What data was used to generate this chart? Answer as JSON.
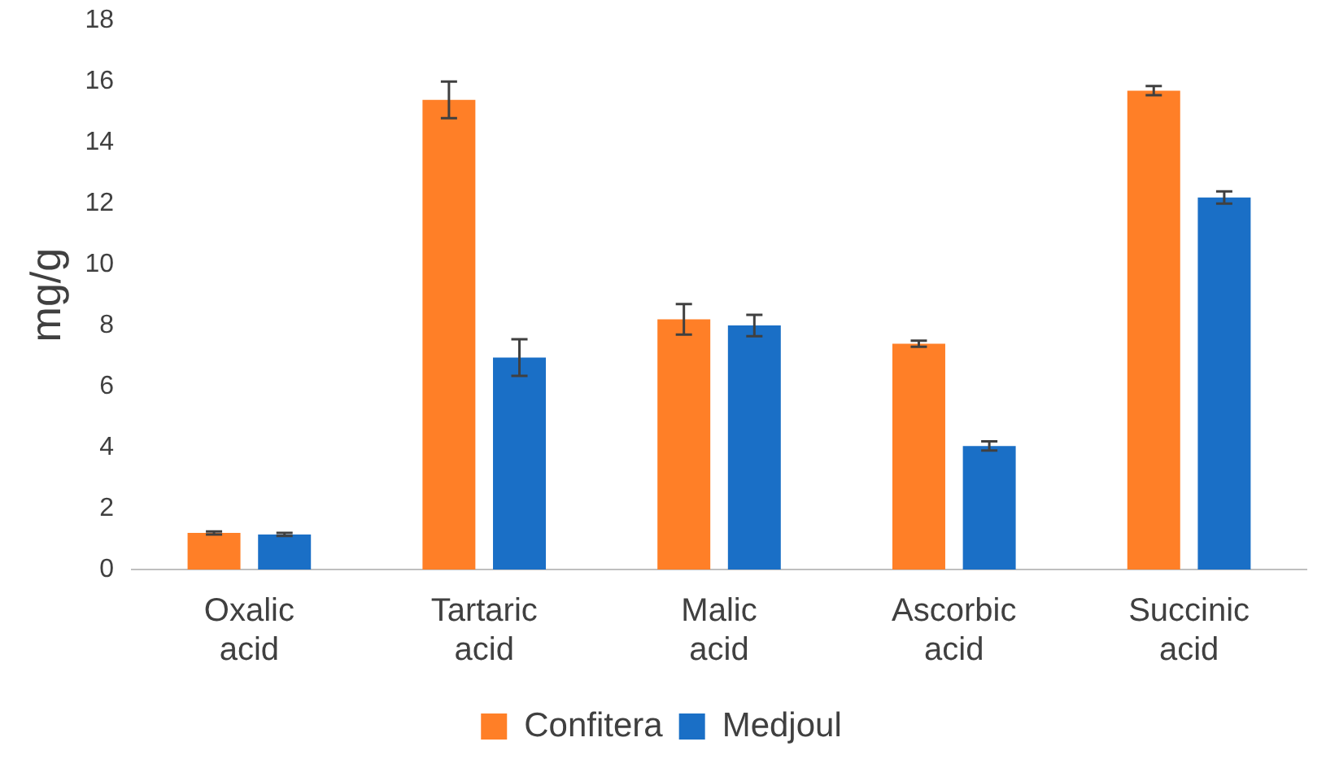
{
  "chart_data": {
    "type": "bar",
    "ylabel": "mg/g",
    "categories": [
      "Oxalic acid",
      "Tartaric acid",
      "Malic acid",
      "Ascorbic acid",
      "Succinic acid"
    ],
    "series": [
      {
        "name": "Confitera",
        "color": "#ff7f27",
        "values": [
          1.2,
          15.4,
          8.2,
          7.4,
          15.7
        ],
        "errors": [
          0.05,
          0.6,
          0.5,
          0.1,
          0.15
        ]
      },
      {
        "name": "Medjoul",
        "color": "#1a6fc6",
        "values": [
          1.15,
          6.95,
          8.0,
          4.05,
          12.2
        ],
        "errors": [
          0.05,
          0.6,
          0.35,
          0.15,
          0.2
        ]
      }
    ],
    "ylim": [
      0,
      18
    ],
    "yticks": [
      0,
      2,
      4,
      6,
      8,
      10,
      12,
      14,
      16,
      18
    ],
    "grid": false,
    "legend": "bottom"
  }
}
